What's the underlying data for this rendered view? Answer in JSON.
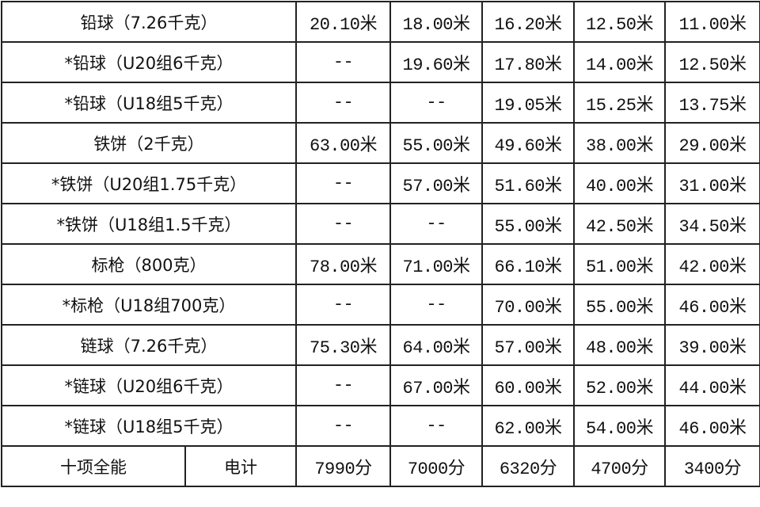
{
  "rows": [
    {
      "event": "铅球（7.26千克）",
      "values": [
        "20.10米",
        "18.00米",
        "16.20米",
        "12.50米",
        "11.00米"
      ]
    },
    {
      "event": "*铅球（U20组6千克）",
      "values": [
        "--",
        "19.60米",
        "17.80米",
        "14.00米",
        "12.50米"
      ]
    },
    {
      "event": "*铅球（U18组5千克）",
      "values": [
        "--",
        "--",
        "19.05米",
        "15.25米",
        "13.75米"
      ]
    },
    {
      "event": "铁饼（2千克）",
      "values": [
        "63.00米",
        "55.00米",
        "49.60米",
        "38.00米",
        "29.00米"
      ]
    },
    {
      "event": "*铁饼（U20组1.75千克）",
      "values": [
        "--",
        "57.00米",
        "51.60米",
        "40.00米",
        "31.00米"
      ]
    },
    {
      "event": "*铁饼（U18组1.5千克）",
      "values": [
        "--",
        "--",
        "55.00米",
        "42.50米",
        "34.50米"
      ]
    },
    {
      "event": "标枪（800克）",
      "values": [
        "78.00米",
        "71.00米",
        "66.10米",
        "51.00米",
        "42.00米"
      ]
    },
    {
      "event": "*标枪（U18组700克）",
      "values": [
        "--",
        "--",
        "70.00米",
        "55.00米",
        "46.00米"
      ]
    },
    {
      "event": "链球（7.26千克）",
      "values": [
        "75.30米",
        "64.00米",
        "57.00米",
        "48.00米",
        "39.00米"
      ]
    },
    {
      "event": "*链球（U20组6千克）",
      "values": [
        "--",
        "67.00米",
        "60.00米",
        "52.00米",
        "44.00米"
      ]
    },
    {
      "event": "*链球（U18组5千克）",
      "values": [
        "--",
        "--",
        "62.00米",
        "54.00米",
        "46.00米"
      ]
    }
  ],
  "last_row": {
    "event": "十项全能",
    "timing": "电计",
    "values": [
      "7990分",
      "7000分",
      "6320分",
      "4700分",
      "3400分"
    ]
  }
}
